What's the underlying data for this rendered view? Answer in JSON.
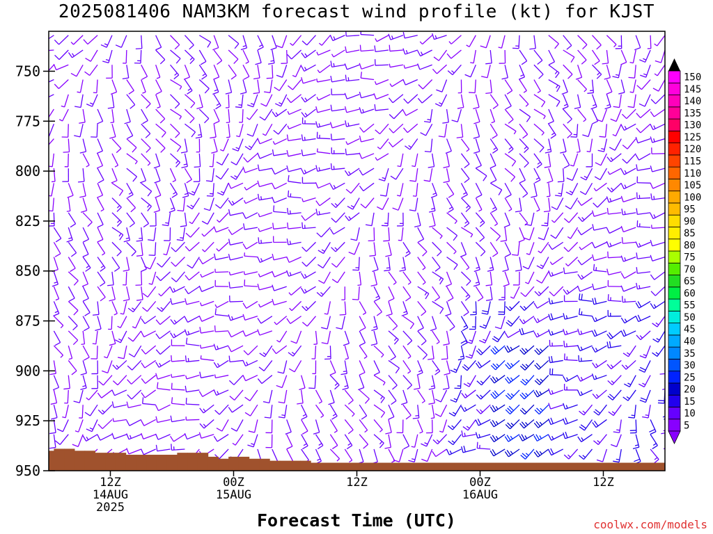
{
  "title": "2025081406 NAM3KM forecast wind profile (kt) for KJST",
  "xlabel": "Forecast Time (UTC)",
  "credit": "coolwx.com/models",
  "y_ticks": [
    "750",
    "775",
    "800",
    "825",
    "850",
    "875",
    "900",
    "925",
    "950"
  ],
  "x_ticks": [
    {
      "lines": [
        "12Z",
        "14AUG",
        "2025"
      ]
    },
    {
      "lines": [
        "00Z",
        "15AUG"
      ]
    },
    {
      "lines": [
        "12Z"
      ]
    },
    {
      "lines": [
        "00Z",
        "16AUG"
      ]
    },
    {
      "lines": [
        "12Z"
      ]
    }
  ],
  "colorbar": {
    "levels": [
      "5",
      "10",
      "15",
      "20",
      "25",
      "30",
      "35",
      "40",
      "45",
      "50",
      "55",
      "60",
      "65",
      "70",
      "75",
      "80",
      "85",
      "90",
      "95",
      "100",
      "105",
      "110",
      "115",
      "120",
      "125",
      "130",
      "135",
      "140",
      "145",
      "150"
    ],
    "colors": [
      "#8800ff",
      "#6600ff",
      "#2200ee",
      "#0000cc",
      "#0022ff",
      "#0055ff",
      "#0088ff",
      "#00aaff",
      "#00ccff",
      "#00eedd",
      "#00ff99",
      "#00ee44",
      "#22dd22",
      "#55ee00",
      "#aaff00",
      "#ffff00",
      "#ffee00",
      "#ffdd00",
      "#ffbb00",
      "#ffaa00",
      "#ff8800",
      "#ff6600",
      "#ff4400",
      "#ff2200",
      "#ff0000",
      "#ff0066",
      "#ff0099",
      "#ff00bb",
      "#ff00dd",
      "#ff00ff"
    ],
    "top_arrow_color": "#000000",
    "bottom_arrow_color": "#8800ff"
  },
  "chart_data": {
    "type": "wind barb profile (time-height)",
    "title": "2025081406 NAM3KM forecast wind profile (kt) for KJST",
    "xlabel": "Forecast Time (UTC)",
    "ylabel": "",
    "y_range_hPa": [
      730,
      950
    ],
    "y_ticks_hPa": [
      750,
      775,
      800,
      825,
      850,
      875,
      900,
      925,
      950
    ],
    "x_range_hours_after_init": [
      0,
      60
    ],
    "x_tick_hours": [
      6,
      18,
      30,
      42,
      54
    ],
    "x_tick_labels": [
      "12Z 14AUG 2025",
      "00Z 15AUG",
      "12Z",
      "00Z 16AUG",
      "12Z"
    ],
    "barb_speed_kt_range": [
      5,
      30
    ],
    "colorbar_levels_kt": [
      5,
      10,
      15,
      20,
      25,
      30,
      35,
      40,
      45,
      50,
      55,
      60,
      65,
      70,
      75,
      80,
      85,
      90,
      95,
      100,
      105,
      110,
      115,
      120,
      125,
      130,
      135,
      140,
      145,
      150
    ],
    "terrain_color": "#a0522d",
    "terrain_surface_hPa": [
      [
        0,
        940
      ],
      [
        1,
        939
      ],
      [
        2,
        939
      ],
      [
        3,
        940
      ],
      [
        4,
        940
      ],
      [
        5,
        941
      ],
      [
        6,
        941
      ],
      [
        7,
        941
      ],
      [
        8,
        942
      ],
      [
        9,
        942
      ],
      [
        10,
        942
      ],
      [
        11,
        942
      ],
      [
        12,
        942
      ],
      [
        13,
        941
      ],
      [
        14,
        941
      ],
      [
        15,
        941
      ],
      [
        16,
        943
      ],
      [
        17,
        944
      ],
      [
        18,
        943
      ],
      [
        19,
        943
      ],
      [
        20,
        944
      ],
      [
        21,
        944
      ],
      [
        22,
        945
      ],
      [
        23,
        945
      ],
      [
        24,
        945
      ],
      [
        25,
        945
      ],
      [
        26,
        946
      ],
      [
        27,
        946
      ],
      [
        28,
        946
      ],
      [
        29,
        946
      ],
      [
        30,
        946
      ],
      [
        31,
        946
      ],
      [
        32,
        946
      ],
      [
        33,
        946
      ],
      [
        34,
        946
      ],
      [
        35,
        946
      ],
      [
        36,
        946
      ],
      [
        37,
        946
      ],
      [
        38,
        946
      ],
      [
        39,
        946
      ],
      [
        40,
        946
      ],
      [
        41,
        946
      ],
      [
        42,
        946
      ],
      [
        43,
        946
      ],
      [
        44,
        946
      ],
      [
        45,
        946
      ],
      [
        46,
        946
      ],
      [
        47,
        946
      ],
      [
        48,
        946
      ],
      [
        49,
        946
      ],
      [
        50,
        946
      ],
      [
        51,
        946
      ],
      [
        52,
        946
      ],
      [
        53,
        946
      ],
      [
        54,
        946
      ],
      [
        55,
        946
      ],
      [
        56,
        946
      ],
      [
        57,
        946
      ],
      [
        58,
        946
      ],
      [
        59,
        946
      ],
      [
        60,
        946
      ]
    ]
  }
}
